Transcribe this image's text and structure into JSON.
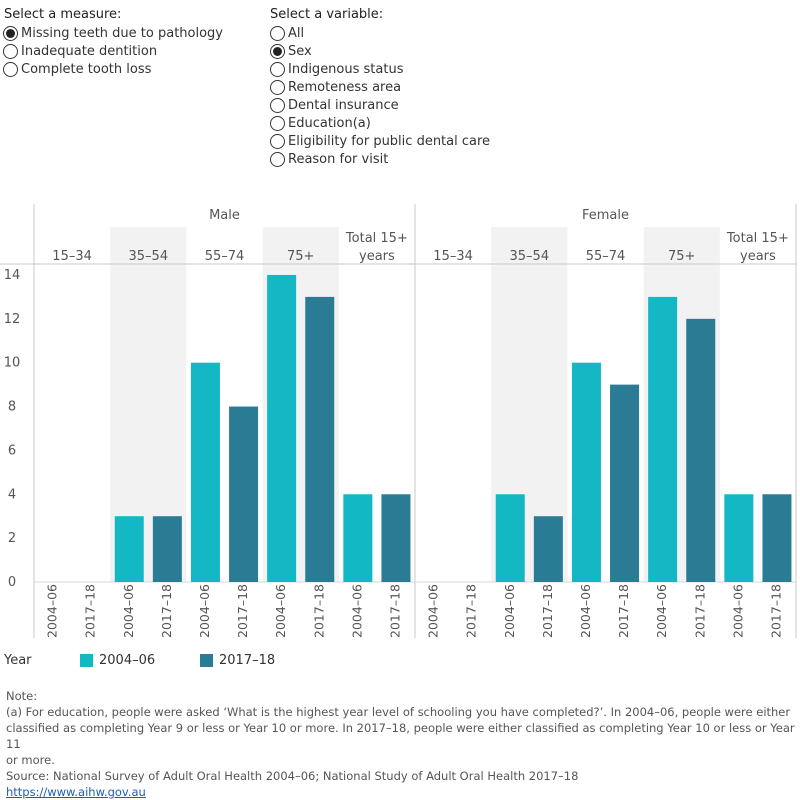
{
  "controls": {
    "measure": {
      "title": "Select a measure:",
      "options": [
        "Missing teeth due to pathology",
        "Inadequate dentition",
        "Complete tooth loss"
      ],
      "selected": 0
    },
    "variable": {
      "title": "Select a variable:",
      "options": [
        "All",
        "Sex",
        "Indigenous status",
        "Remoteness area",
        "Dental insurance",
        "Education(a)",
        "Eligibility for public dental care",
        "Reason for visit"
      ],
      "selected": 1
    }
  },
  "legend": {
    "title": "Year",
    "items": [
      {
        "label": "2004–06",
        "color": "#14b8c4"
      },
      {
        "label": "2017–18",
        "color": "#2a7b94"
      }
    ]
  },
  "chart_data": {
    "type": "bar",
    "ylim": [
      0,
      14.5
    ],
    "yticks": [
      0,
      2,
      4,
      6,
      8,
      10,
      12,
      14
    ],
    "series_names": [
      "2004–06",
      "2017–18"
    ],
    "panels": [
      {
        "name": "Male",
        "groups": [
          {
            "label": "15–34",
            "values": [
              0,
              0
            ]
          },
          {
            "label": "35–54",
            "values": [
              3,
              3
            ]
          },
          {
            "label": "55–74",
            "values": [
              10,
              8
            ]
          },
          {
            "label": "75+",
            "values": [
              14,
              13
            ]
          },
          {
            "label": "Total 15+ years",
            "values": [
              4,
              4
            ]
          }
        ]
      },
      {
        "name": "Female",
        "groups": [
          {
            "label": "15–34",
            "values": [
              0,
              0
            ]
          },
          {
            "label": "35–54",
            "values": [
              4,
              3
            ]
          },
          {
            "label": "55–74",
            "values": [
              10,
              9
            ]
          },
          {
            "label": "75+",
            "values": [
              13,
              12
            ]
          },
          {
            "label": "Total 15+ years",
            "values": [
              4,
              4
            ]
          }
        ]
      }
    ]
  },
  "notes": {
    "heading": "Note:",
    "line1": "(a) For education, people were asked ‘What is the highest year level of schooling you have completed?’. In 2004–06, people were either",
    "line2": "classified as completing Year 9 or less or Year 10 or more. In 2017–18, people were either classified as completing Year 10 or less or Year 11",
    "line3": "or more.",
    "source": "Source: National Survey of Adult Oral Health 2004–06; National Study of Adult Oral Health 2017–18",
    "link": "https://www.aihw.gov.au"
  }
}
